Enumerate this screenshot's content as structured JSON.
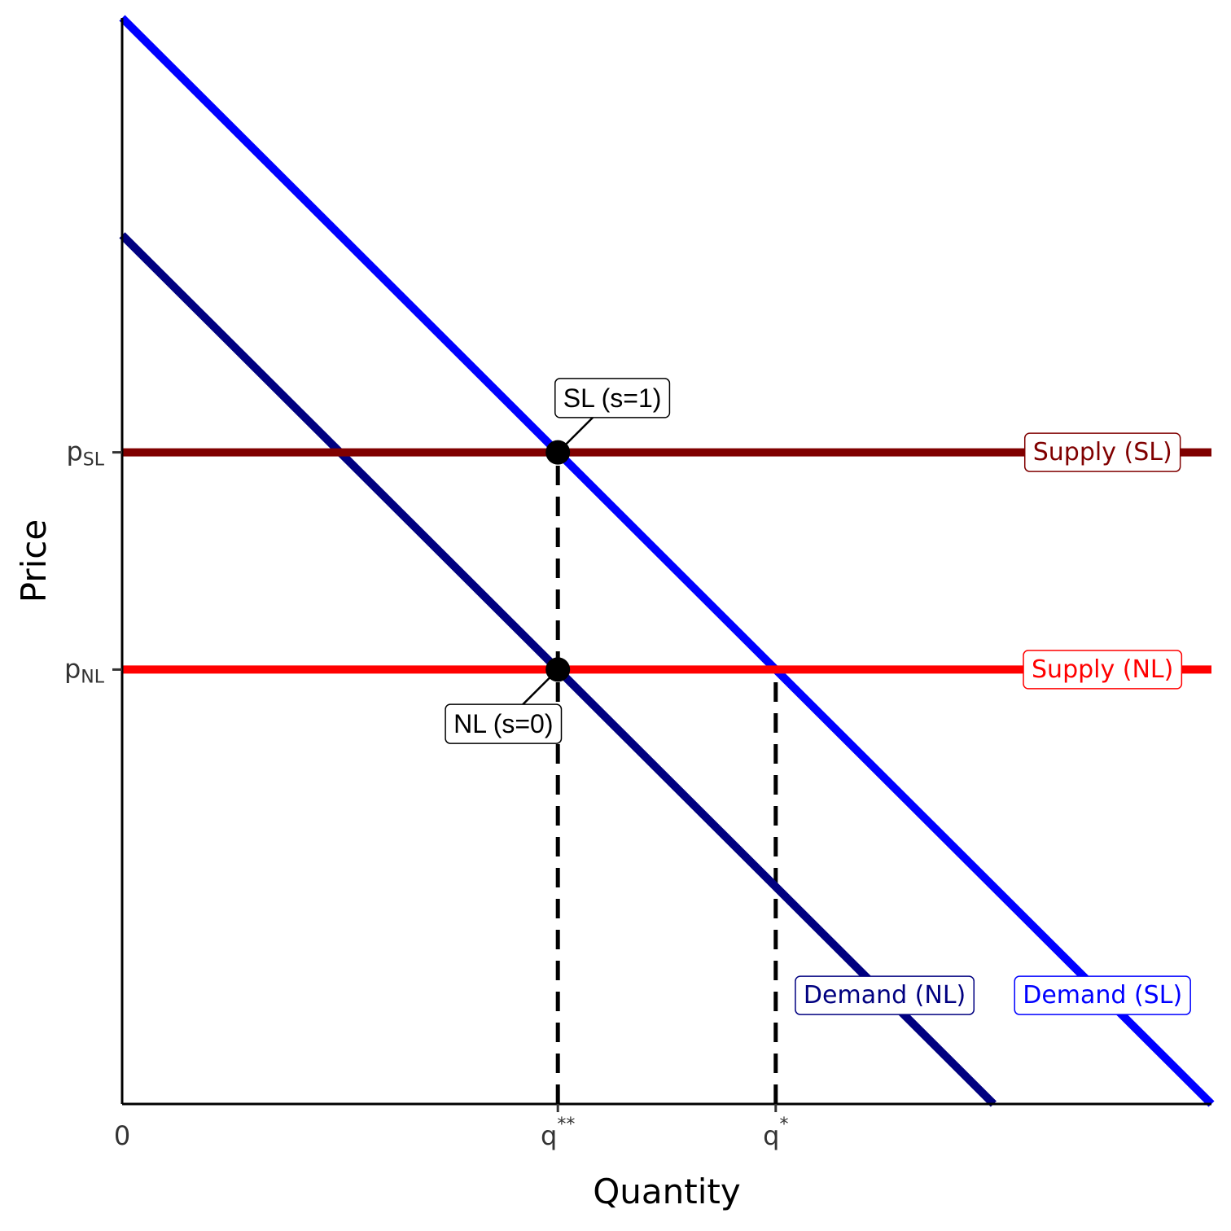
{
  "chart_data": {
    "type": "line",
    "title": "",
    "xlabel": "Quantity",
    "ylabel": "Price",
    "xlim": [
      0,
      10
    ],
    "ylim": [
      0,
      10
    ],
    "grid": false,
    "x_ticks": [
      {
        "value": 0,
        "base": "0",
        "sup": ""
      },
      {
        "value": 4,
        "base": "q",
        "sup": "**"
      },
      {
        "value": 6,
        "base": "q",
        "sup": "*"
      }
    ],
    "y_ticks": [
      {
        "value": 6,
        "base": "p",
        "sub": "SL"
      },
      {
        "value": 4,
        "base": "p",
        "sub": "NL"
      }
    ],
    "series": [
      {
        "name": "Demand (SL)",
        "color": "#0000FF",
        "x": [
          0,
          10
        ],
        "y": [
          10,
          0
        ],
        "label_at": [
          9.0,
          1.0
        ]
      },
      {
        "name": "Demand (NL)",
        "color": "#000080",
        "x": [
          0,
          8
        ],
        "y": [
          8,
          0
        ],
        "label_at": [
          7.0,
          1.0
        ]
      },
      {
        "name": "Supply (SL)",
        "color": "#800000",
        "x": [
          0,
          10
        ],
        "y": [
          6,
          6
        ],
        "label_at": [
          9.0,
          6.0
        ]
      },
      {
        "name": "Supply (NL)",
        "color": "#FF0000",
        "x": [
          0,
          10
        ],
        "y": [
          4,
          4
        ],
        "label_at": [
          9.0,
          4.0
        ]
      }
    ],
    "reference_lines": [
      {
        "x": 4,
        "y_from": 0,
        "y_to": 6,
        "style": "dashed"
      },
      {
        "x": 6,
        "y_from": 0,
        "y_to": 4,
        "style": "dashed"
      }
    ],
    "points": [
      {
        "x": 4,
        "y": 6,
        "label": "SL (s=1)",
        "label_at": [
          4.5,
          6.5
        ]
      },
      {
        "x": 4,
        "y": 4,
        "label": "NL (s=0)",
        "label_at": [
          3.5,
          3.5
        ]
      }
    ]
  }
}
